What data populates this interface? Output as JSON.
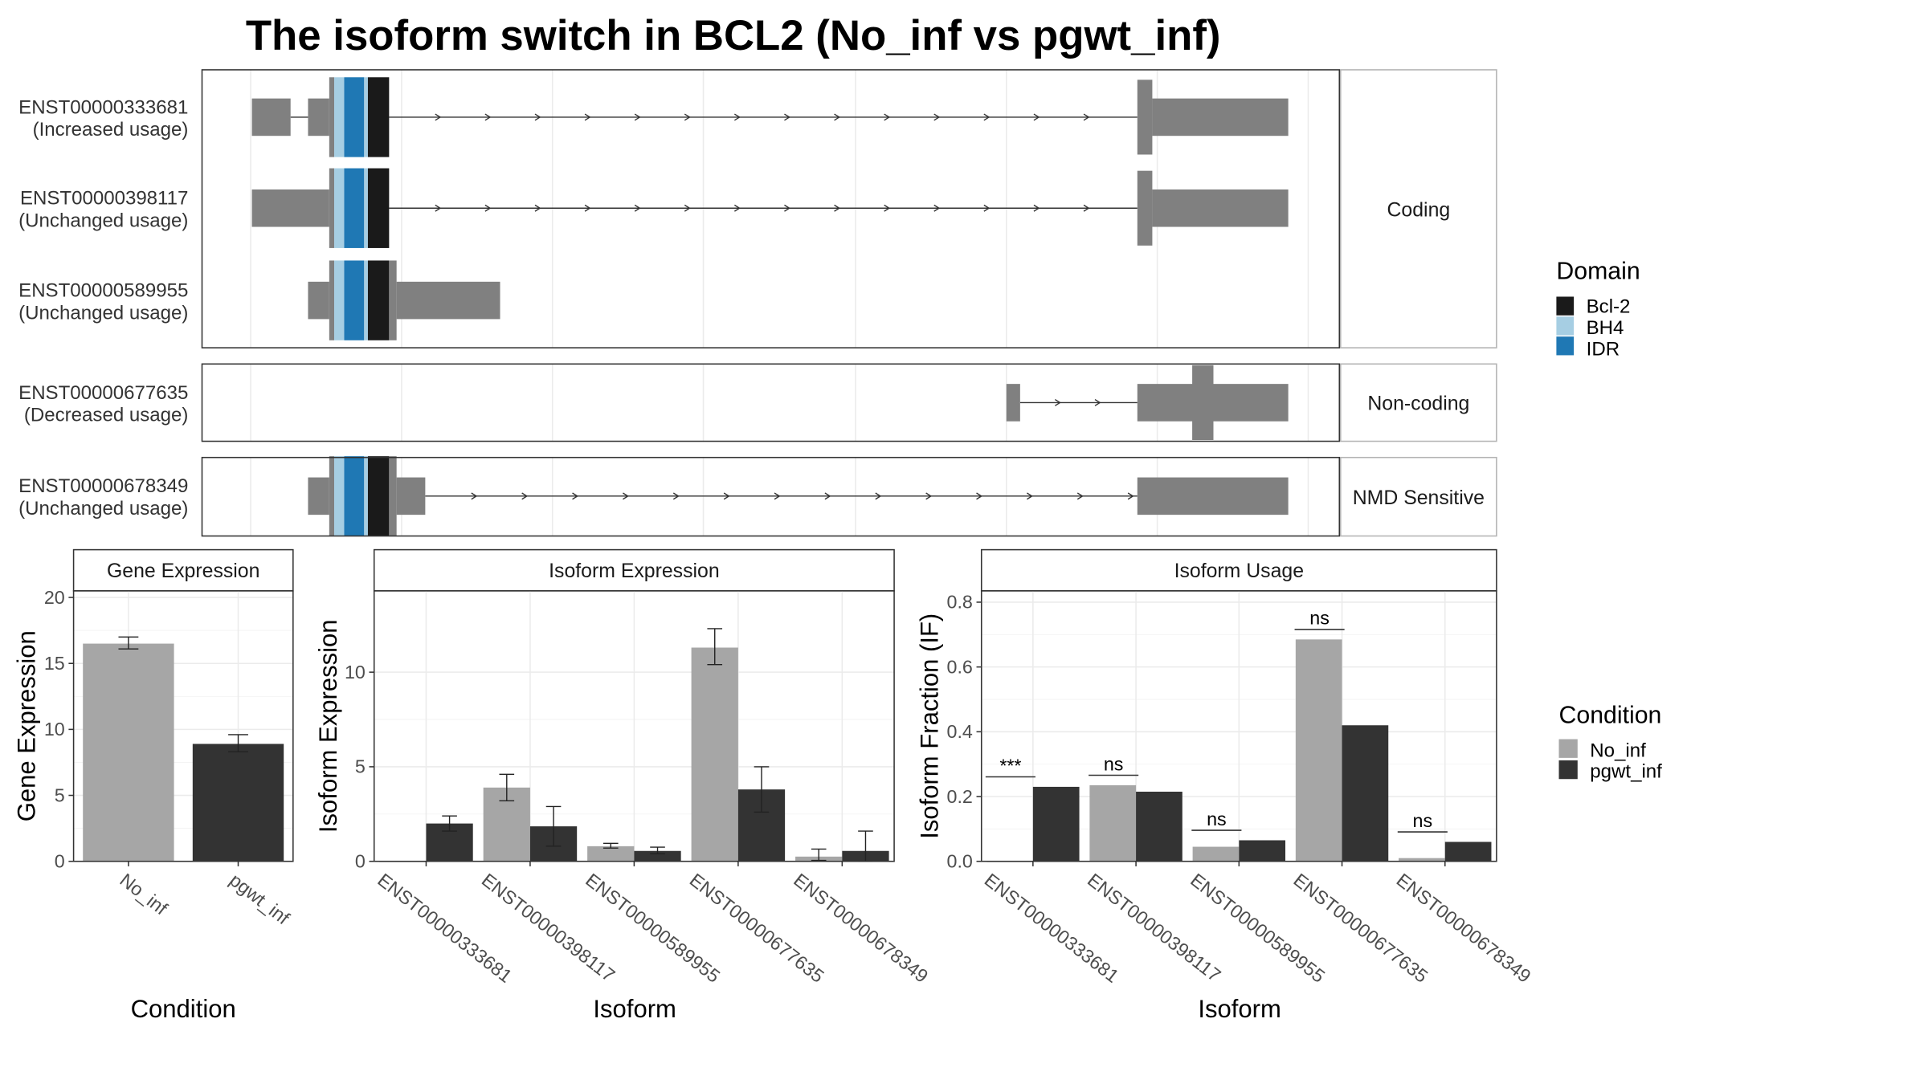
{
  "title": "The isoform switch in BCL2 (No_inf vs pgwt_inf)",
  "colors": {
    "transcript": "#808080",
    "domains": {
      "Bcl-2": "#1a1a1a",
      "BH4": "#a6cee3",
      "IDR": "#1f78b4"
    },
    "conditions": {
      "No_inf": "#a6a6a6",
      "pgwt_inf": "#333333"
    }
  },
  "structure": {
    "groups": [
      {
        "label": "Coding"
      },
      {
        "label": "Non-coding"
      },
      {
        "label": "NMD Sensitive"
      }
    ],
    "transcripts": [
      {
        "id": "ENST00000333681",
        "usage": "(Increased usage)",
        "group": 0
      },
      {
        "id": "ENST00000398117",
        "usage": "(Unchanged usage)",
        "group": 0
      },
      {
        "id": "ENST00000589955",
        "usage": "(Unchanged usage)",
        "group": 0
      },
      {
        "id": "ENST00000677635",
        "usage": "(Decreased usage)",
        "group": 1
      },
      {
        "id": "ENST00000678349",
        "usage": "(Unchanged usage)",
        "group": 2
      }
    ]
  },
  "legend_domain": {
    "title": "Domain",
    "items": [
      "Bcl-2",
      "BH4",
      "IDR"
    ]
  },
  "legend_condition": {
    "title": "Condition",
    "items": [
      "No_inf",
      "pgwt_inf"
    ]
  },
  "chart_data": [
    {
      "type": "bar",
      "title": "Gene Expression",
      "xlabel": "Condition",
      "ylabel": "Gene Expression",
      "ylim": [
        0,
        20.5
      ],
      "yticks": [
        0,
        5,
        10,
        15,
        20
      ],
      "categories": [
        "No_inf",
        "pgwt_inf"
      ],
      "values": [
        16.5,
        8.9
      ],
      "errors": [
        [
          16.1,
          17.0
        ],
        [
          8.3,
          9.6
        ]
      ],
      "grid": true
    },
    {
      "type": "bar",
      "title": "Isoform Expression",
      "xlabel": "Isoform",
      "ylabel": "Isoform Expression",
      "ylim": [
        0,
        14.3
      ],
      "yticks": [
        0,
        5,
        10
      ],
      "categories": [
        "ENST00000333681",
        "ENST00000398117",
        "ENST00000589955",
        "ENST00000677635",
        "ENST00000678349"
      ],
      "series": [
        {
          "name": "No_inf",
          "values": [
            0.0,
            3.9,
            0.8,
            11.3,
            0.25
          ],
          "errors": [
            [
              0.0,
              0.0
            ],
            [
              3.2,
              4.6
            ],
            [
              0.7,
              0.95
            ],
            [
              10.4,
              12.3
            ],
            [
              0.05,
              0.65
            ]
          ]
        },
        {
          "name": "pgwt_inf",
          "values": [
            2.0,
            1.85,
            0.55,
            3.8,
            0.55
          ],
          "errors": [
            [
              1.6,
              2.4
            ],
            [
              0.8,
              2.9
            ],
            [
              0.4,
              0.75
            ],
            [
              2.6,
              5.0
            ],
            [
              0.0,
              1.6
            ]
          ]
        }
      ],
      "grid": true
    },
    {
      "type": "bar",
      "title": "Isoform Usage",
      "xlabel": "Isoform",
      "ylabel": "Isoform Fraction (IF)",
      "ylim": [
        0,
        0.835
      ],
      "yticks": [
        0.0,
        0.2,
        0.4,
        0.6,
        0.8
      ],
      "categories": [
        "ENST00000333681",
        "ENST00000398117",
        "ENST00000589955",
        "ENST00000677635",
        "ENST00000678349"
      ],
      "series": [
        {
          "name": "No_inf",
          "values": [
            0.0,
            0.235,
            0.045,
            0.685,
            0.01
          ]
        },
        {
          "name": "pgwt_inf",
          "values": [
            0.23,
            0.215,
            0.065,
            0.42,
            0.06
          ]
        }
      ],
      "significance": [
        "***",
        "ns",
        "ns",
        "ns",
        "ns"
      ],
      "grid": true
    }
  ]
}
